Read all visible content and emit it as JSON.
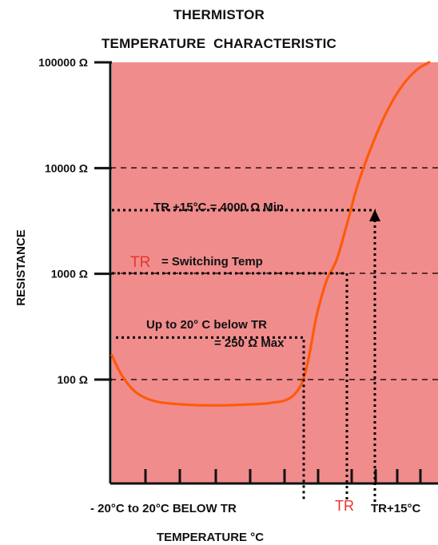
{
  "chart_data": {
    "type": "line",
    "title_line1": "THERMISTOR",
    "title_line2": "TEMPERATURE  CHARACTERISTIC",
    "ylabel": "RESISTANCE",
    "xlabel": "TEMPERATURE   °C",
    "y_scale": "log",
    "ylim": [
      10,
      100000
    ],
    "y_ticks": [
      {
        "value": 100000,
        "label": "100000 Ω"
      },
      {
        "value": 10000,
        "label": "10000 Ω"
      },
      {
        "value": 1000,
        "label": "1000 Ω"
      },
      {
        "value": 100,
        "label": "100 Ω"
      }
    ],
    "x_labels": [
      {
        "text": "- 20°C to 20°C BELOW TR",
        "color": "#111111"
      },
      {
        "text": "TR",
        "color": "#e8352b"
      },
      {
        "text": "TR+15°C",
        "color": "#111111"
      }
    ],
    "xlim": [
      -45,
      20
    ],
    "series": [
      {
        "x": [
          -45,
          -43,
          -40,
          -36,
          -30,
          -24,
          -18,
          -13,
          -9,
          -6.5,
          -5,
          -3.5,
          -2,
          -1,
          0,
          1,
          3,
          5,
          8,
          11,
          14,
          17,
          19.5
        ],
        "y": [
          170,
          110,
          75,
          62,
          58,
          57,
          58,
          60,
          66,
          90,
          160,
          380,
          700,
          950,
          1150,
          1500,
          3200,
          7000,
          17000,
          35000,
          60000,
          85000,
          100000
        ]
      }
    ],
    "annotations": {
      "switching_prefix": "TR",
      "switching_text": "= Switching Temp",
      "max_line1": "Up to 20° C below TR",
      "max_line2": "= 250  Ω  Max",
      "min_text": "TR +15°C  = 4000  Ω Min"
    },
    "grid": "dashed horizontal",
    "colors": {
      "plot_background": "#f08c8c",
      "curve": "#ff5a0a",
      "tr_label": "#e8352b",
      "axis": "#111111"
    }
  }
}
